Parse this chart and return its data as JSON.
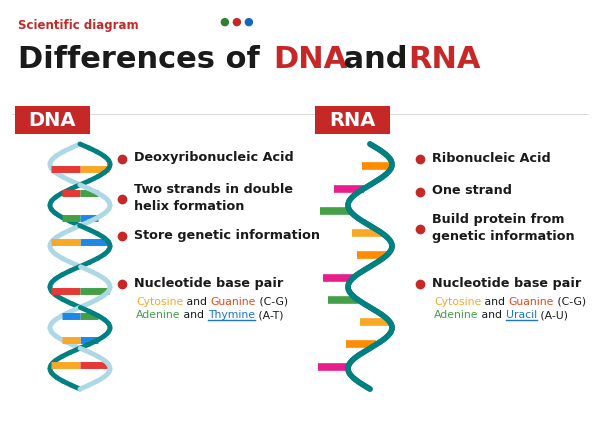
{
  "title_label": "Scientific diagram",
  "title_dots": [
    "#2e7d32",
    "#c62828",
    "#1565c0"
  ],
  "red_color": "#c62828",
  "teal_color": "#008080",
  "light_blue": "#add8e6",
  "dna_label": "DNA",
  "rna_label": "RNA",
  "dna_bullet1": "Deoxyribonucleic Acid",
  "dna_bullet2": "Two strands in double\nhelix formation",
  "dna_bullet3": "Store genetic information",
  "dna_bullet4": "Nucleotide base pair",
  "dna_sub1a": "Cytosine",
  "dna_sub1b": " and ",
  "dna_sub1c": "Guanine",
  "dna_sub1d": " (C-G)",
  "dna_sub2a": "Adenine",
  "dna_sub2b": " and ",
  "dna_sub2c": "Thymine",
  "dna_sub2d": " (A-T)",
  "rna_bullet1": "Ribonucleic Acid",
  "rna_bullet2": "One strand",
  "rna_bullet3": "Build protein from\ngenetic information",
  "rna_bullet4": "Nucleotide base pair",
  "rna_sub1a": "Cytosine",
  "rna_sub1b": " and ",
  "rna_sub1c": "Guanine",
  "rna_sub1d": " (C-G)",
  "rna_sub2a": "Adenine",
  "rna_sub2b": " and ",
  "rna_sub2c": "Uracil",
  "rna_sub2d": " (A-U)",
  "cytosine_color": "#f9a825",
  "guanine_color": "#e64a19",
  "adenine_color": "#43a047",
  "thymine_color": "#1976d2",
  "uracil_color": "#1976d2",
  "bg_color": "#ffffff",
  "bullet_color": "#c62828",
  "text_color": "#1a1a1a",
  "dna_helix_colors": [
    "#f9a825",
    "#e53935",
    "#43a047",
    "#1e88e5"
  ],
  "rna_helix_colors": [
    "#ff8c00",
    "#e91e8c",
    "#43a047",
    "#f9a825"
  ]
}
